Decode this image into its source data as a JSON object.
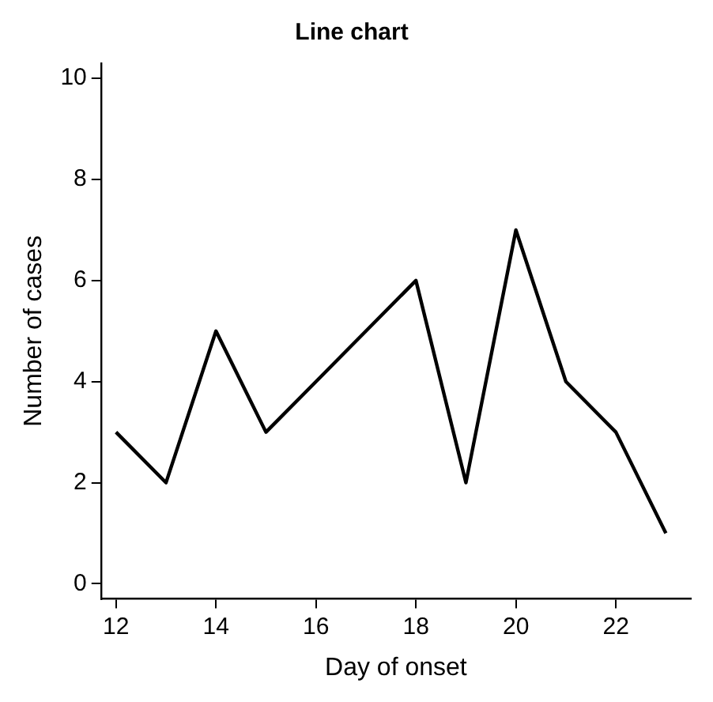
{
  "chart_data": {
    "type": "line",
    "title": "Line chart",
    "xlabel": "Day of onset",
    "ylabel": "Number of cases",
    "x": [
      12,
      13,
      14,
      15,
      16,
      17,
      18,
      19,
      20,
      21,
      22,
      23
    ],
    "series": [
      {
        "color": "#000000",
        "values": [
          3,
          2,
          5,
          3,
          4,
          5,
          6,
          2,
          7,
          4,
          3,
          1
        ]
      }
    ],
    "xlim": [
      11.7,
      23.5
    ],
    "ylim": [
      -0.3,
      10.3
    ],
    "xticks": [
      12,
      14,
      16,
      18,
      20,
      22
    ],
    "yticks": [
      0,
      2,
      4,
      6,
      8,
      10
    ],
    "grid": false,
    "legend": false,
    "marker": "none",
    "line_style": "solid"
  }
}
